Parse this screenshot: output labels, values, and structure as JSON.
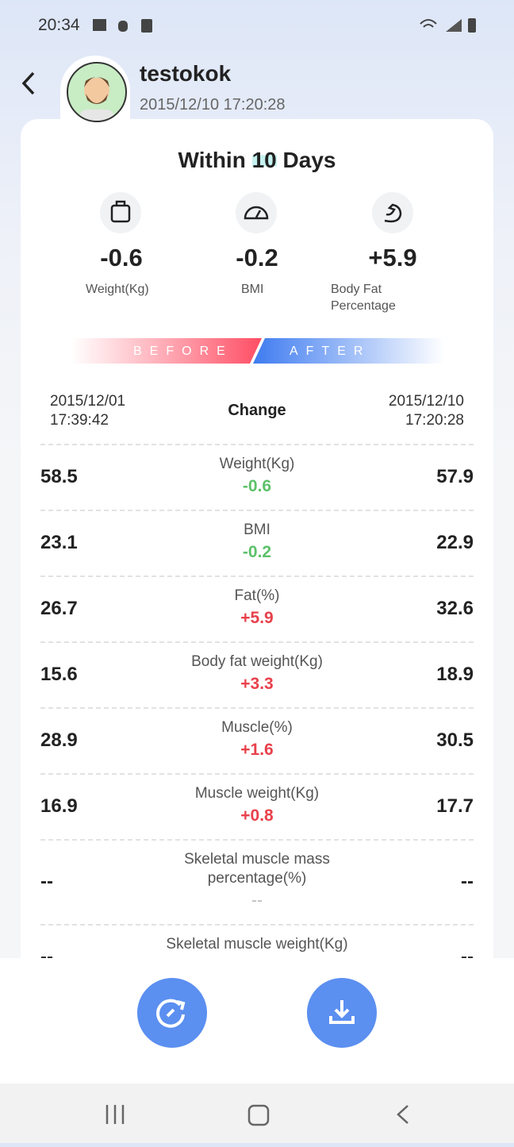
{
  "status_bar": {
    "time": "20:34"
  },
  "header": {
    "name": "testokok",
    "date": "2015/12/10 17:20:28"
  },
  "summary": {
    "title_before": "Within ",
    "title_highlight": "10",
    "title_after": " Days",
    "items": [
      {
        "value": "-0.6",
        "label": "Weight(Kg)"
      },
      {
        "value": "-0.2",
        "label": "BMI"
      },
      {
        "value": "+5.9",
        "label": "Body Fat Percentage"
      }
    ]
  },
  "comparison": {
    "before_label": "BEFORE",
    "after_label": "AFTER",
    "before_date": "2015/12/01",
    "before_time": "17:39:42",
    "change_label": "Change",
    "after_date": "2015/12/10",
    "after_time": "17:20:28",
    "rows": [
      {
        "before": "58.5",
        "name": "Weight(Kg)",
        "change": "-0.6",
        "after": "57.9"
      },
      {
        "before": "23.1",
        "name": "BMI",
        "change": "-0.2",
        "after": "22.9"
      },
      {
        "before": "26.7",
        "name": "Fat(%)",
        "change": "+5.9",
        "after": "32.6"
      },
      {
        "before": "15.6",
        "name": "Body fat weight(Kg)",
        "change": "+3.3",
        "after": "18.9"
      },
      {
        "before": "28.9",
        "name": "Muscle(%)",
        "change": "+1.6",
        "after": "30.5"
      },
      {
        "before": "16.9",
        "name": "Muscle weight(Kg)",
        "change": "+0.8",
        "after": "17.7"
      },
      {
        "before": "--",
        "name": "Skeletal muscle mass percentage(%)",
        "change": "--",
        "after": "--"
      },
      {
        "before": "--",
        "name": "Skeletal muscle weight(Kg)",
        "change": "--",
        "after": "--"
      }
    ]
  }
}
